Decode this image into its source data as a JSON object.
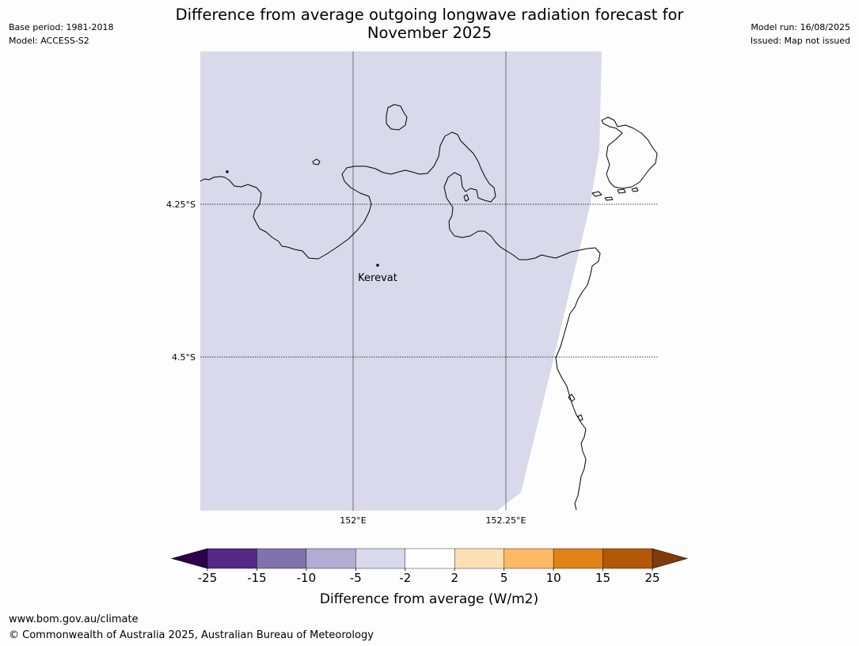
{
  "header": {
    "title_line1": "Difference from average outgoing longwave radiation forecast for",
    "title_line2": "November 2025",
    "base_period": "Base period: 1981-2018",
    "model": "Model: ACCESS-S2",
    "model_run": "Model run: 16/08/2025",
    "issued": "Issued: Map not issued"
  },
  "map": {
    "lat_labels": [
      "4.25°S",
      "4.5°S"
    ],
    "lon_labels": [
      "152°E",
      "152.25°E"
    ],
    "place": "Kerevat",
    "forecast_fill_color": "#d8d9ea",
    "coastline_color": "#000000"
  },
  "colorbar": {
    "label": "Difference from average (W/m2)",
    "ticks": [
      "-25",
      "-15",
      "-10",
      "-5",
      "-2",
      "2",
      "5",
      "10",
      "15",
      "25"
    ],
    "colors": {
      "below_min": "#2d004b",
      "bins": [
        "#542788",
        "#8073ac",
        "#b2abd2",
        "#d8daeb",
        "#ffffff",
        "#fee0b6",
        "#fdb863",
        "#e08214",
        "#b35806"
      ],
      "above_max": "#7f3b08"
    }
  },
  "footer": {
    "url": "www.bom.gov.au/climate",
    "copyright": "© Commonwealth of Australia 2025, Australian Bureau of Meteorology"
  }
}
